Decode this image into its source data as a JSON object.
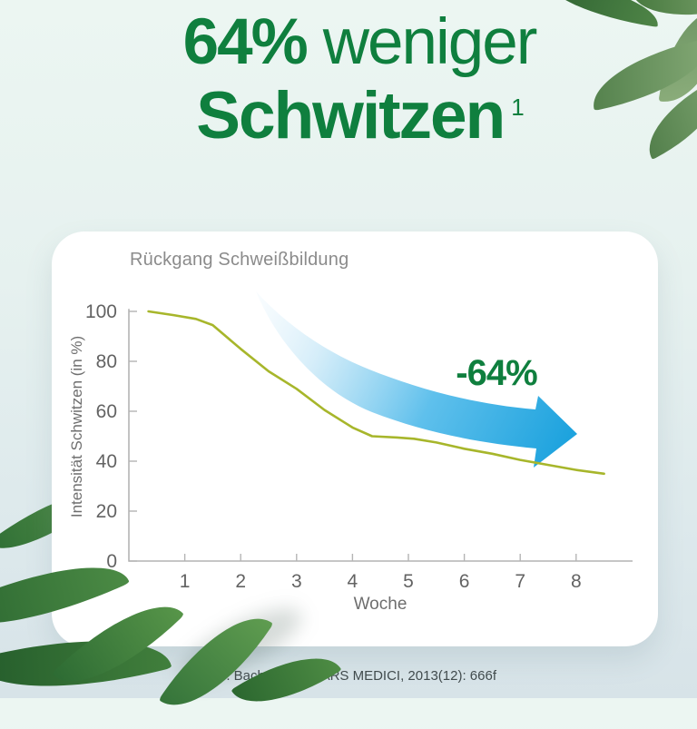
{
  "header": {
    "line1_strong": "64%",
    "line1_rest": "weniger",
    "line2": "Schwitzen",
    "superscript": "1",
    "color": "#0f7f3e"
  },
  "chart_card": {
    "title": "Rückgang Schweißbildung"
  },
  "chart_data": {
    "type": "line",
    "title": "Rückgang Schweißbildung",
    "xlabel": "Woche",
    "ylabel": "Intensität Schwitzen (in %)",
    "xlim": [
      0,
      9
    ],
    "ylim": [
      0,
      100
    ],
    "x_ticks": [
      1,
      2,
      3,
      4,
      5,
      6,
      7,
      8
    ],
    "y_ticks": [
      0,
      20,
      40,
      60,
      80,
      100
    ],
    "grid": "off",
    "legend": "none",
    "line_color": "#a7b62b",
    "axis_color": "#b4b4b4",
    "tick_label_color": "#636363",
    "series": [
      {
        "name": "Intensität Schwitzen",
        "points": [
          [
            0.35,
            100
          ],
          [
            0.8,
            98.5
          ],
          [
            1.2,
            97
          ],
          [
            1.5,
            94.5
          ],
          [
            2,
            85
          ],
          [
            2.5,
            76
          ],
          [
            3,
            69
          ],
          [
            3.5,
            60.5
          ],
          [
            4,
            53.5
          ],
          [
            4.35,
            50
          ],
          [
            4.8,
            49.5
          ],
          [
            5.1,
            49
          ],
          [
            5.5,
            47.5
          ],
          [
            6,
            45
          ],
          [
            6.5,
            43
          ],
          [
            7,
            40.5
          ],
          [
            7.5,
            38.5
          ],
          [
            8,
            36.5
          ],
          [
            8.5,
            35
          ]
        ]
      }
    ],
    "annotation": {
      "text": "-64%",
      "color": "#0f7f3e"
    },
    "arrow": {
      "direction": "down-right",
      "color_start": "#dff0fb",
      "color_end": "#1ea3de"
    }
  },
  "footnote": "1) C. Bachmann. In ARS MEDICI, 2013(12): 666f",
  "accents": {
    "title_green": "#0f7f3e",
    "arrow_blue": "#2aa7e0",
    "line_olive": "#a7b62b",
    "card_background": "#ffffff"
  }
}
